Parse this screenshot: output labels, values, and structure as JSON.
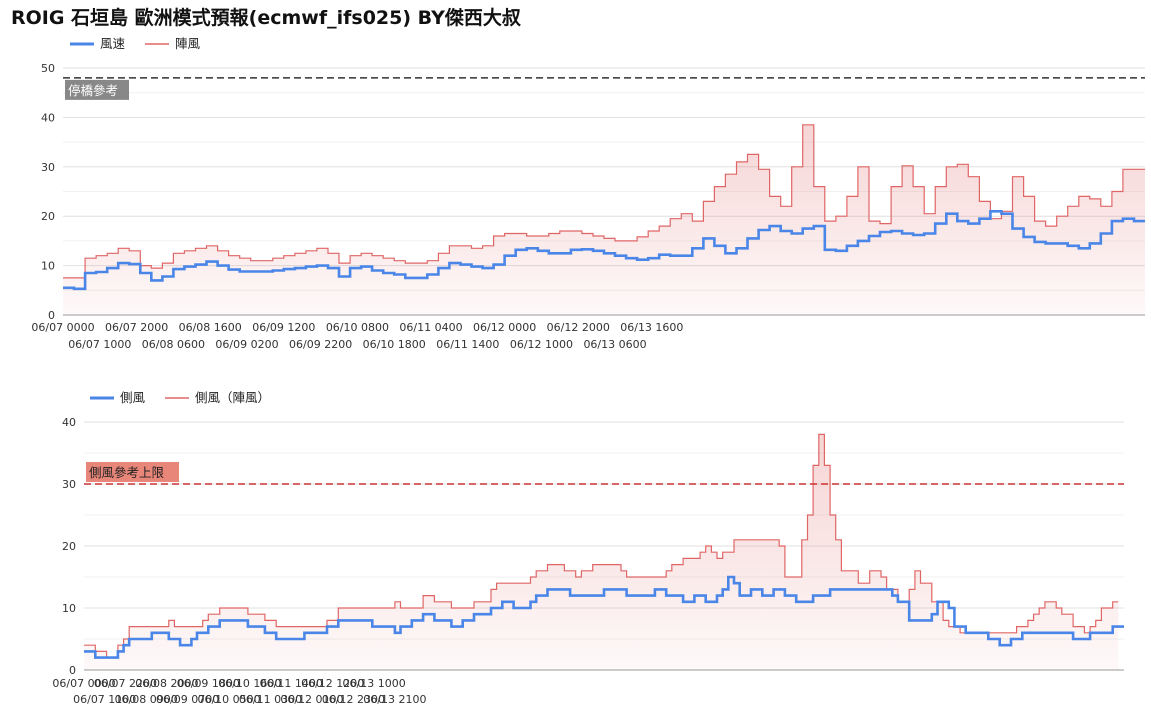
{
  "page": {
    "title": "ROIG 石垣島 歐洲模式預報(ecmwf_ifs025)  BY傑西大叔"
  },
  "colors": {
    "wind": "#4a86e8",
    "gust": "#e06666",
    "gust_fill": "#fce8e8",
    "grid": "#e0e0e0",
    "ref_line_top": "#333333",
    "ref_label_top_bg": "#888888",
    "ref_line_bottom": "#cc3333",
    "ref_label_bottom_bg": "#e8867a"
  },
  "chart_data": [
    {
      "type": "line",
      "step": true,
      "title": "",
      "xlabel": "",
      "ylabel": "",
      "ylim": [
        0,
        50
      ],
      "yticks": [
        0,
        10,
        20,
        30,
        40,
        50
      ],
      "grid": true,
      "legend_position": "top-left",
      "x_start": "06/07 0000",
      "x_step_hours": 3,
      "x_end": "06/13 2100",
      "xtick_labels": [
        {
          "label": "06/07 0000",
          "hour": 0,
          "row": 1
        },
        {
          "label": "06/07 1000",
          "hour": 10,
          "row": 2
        },
        {
          "label": "06/07 2000",
          "hour": 20,
          "row": 1
        },
        {
          "label": "06/08 0600",
          "hour": 30,
          "row": 2
        },
        {
          "label": "06/08 1600",
          "hour": 40,
          "row": 1
        },
        {
          "label": "06/09 0200",
          "hour": 50,
          "row": 2
        },
        {
          "label": "06/09 1200",
          "hour": 60,
          "row": 1
        },
        {
          "label": "06/09 2200",
          "hour": 70,
          "row": 2
        },
        {
          "label": "06/10 0800",
          "hour": 80,
          "row": 1
        },
        {
          "label": "06/10 1800",
          "hour": 90,
          "row": 2
        },
        {
          "label": "06/11 0400",
          "hour": 100,
          "row": 1
        },
        {
          "label": "06/11 1400",
          "hour": 110,
          "row": 2
        },
        {
          "label": "06/12 0000",
          "hour": 120,
          "row": 1
        },
        {
          "label": "06/12 1000",
          "hour": 130,
          "row": 2
        },
        {
          "label": "06/12 2000",
          "hour": 140,
          "row": 1
        },
        {
          "label": "06/13 0600",
          "hour": 150,
          "row": 2
        },
        {
          "label": "06/13 1600",
          "hour": 160,
          "row": 1
        }
      ],
      "reference": {
        "value": 48,
        "label": "停橋參考",
        "style": "dashed"
      },
      "series": [
        {
          "name": "風速",
          "role": "wind",
          "values": [
            5.5,
            5.3,
            8.5,
            8.7,
            9.5,
            10.5,
            10.3,
            8.5,
            7,
            7.8,
            9.3,
            9.8,
            10.2,
            10.8,
            10,
            9.2,
            8.8,
            8.8,
            8.8,
            9,
            9.3,
            9.5,
            9.8,
            10,
            9.5,
            7.8,
            9.5,
            9.8,
            9,
            8.5,
            8.2,
            7.5,
            7.5,
            8.2,
            9.5,
            10.5,
            10.2,
            9.8,
            9.5,
            10.2,
            12,
            13.2,
            13.5,
            13,
            12.5,
            12.5,
            13.2,
            13.3,
            13,
            12.5,
            12,
            11.5,
            11.2,
            11.5,
            12.2,
            12,
            12,
            13.5,
            15.5,
            14,
            12.5,
            13.5,
            15.5,
            17.2,
            18,
            17,
            16.5,
            17.5,
            18,
            13.2,
            13,
            14,
            15,
            16,
            16.8,
            17,
            16.5,
            16.2,
            16.5,
            18.5,
            20.5,
            19,
            18.5,
            19.5,
            21,
            20.5,
            17.5,
            15.8,
            14.8,
            14.5,
            14.5,
            14,
            13.5,
            14.5,
            16.5,
            19,
            19.5,
            19
          ]
        },
        {
          "name": "陣風",
          "role": "gust",
          "values": [
            7.5,
            7.5,
            11.5,
            12,
            12.5,
            13.5,
            13,
            10,
            9.5,
            10.5,
            12.5,
            13,
            13.5,
            14,
            13,
            12,
            11.5,
            11,
            11,
            11.5,
            12,
            12.5,
            13,
            13.5,
            12.5,
            10.5,
            12,
            12.5,
            12,
            11.5,
            11,
            10.5,
            10.5,
            11,
            12.5,
            14,
            14,
            13.5,
            14,
            16,
            16.5,
            16.5,
            16,
            16,
            16.5,
            17,
            17,
            16.5,
            16,
            15.5,
            15,
            15,
            15.8,
            17,
            18,
            19.5,
            20.5,
            19,
            23,
            26,
            28.5,
            31,
            32.5,
            29.5,
            24,
            22,
            30,
            38.5,
            26,
            19,
            20,
            24,
            30,
            19,
            18.5,
            26,
            30.2,
            26,
            20.5,
            26,
            30,
            30.5,
            28,
            23,
            19.5,
            21,
            28,
            24,
            19,
            18,
            20,
            22,
            24,
            23.5,
            22,
            25,
            29.5,
            29.5
          ]
        }
      ]
    },
    {
      "type": "line",
      "step": true,
      "title": "",
      "xlabel": "",
      "ylabel": "",
      "ylim": [
        0,
        40
      ],
      "yticks": [
        0,
        10,
        20,
        30,
        40
      ],
      "grid": true,
      "legend_position": "top-left",
      "x_start": "06/07 0000",
      "x_step_hours": 3,
      "x_end": "06/13 2100",
      "xtick_labels": [
        {
          "label": "06/07 0000",
          "hour": 0,
          "row": 1
        },
        {
          "label": "06/07 1100",
          "hour": 11,
          "row": 2
        },
        {
          "label": "06/07 2200",
          "hour": 22,
          "row": 1
        },
        {
          "label": "06/08 0900",
          "hour": 33,
          "row": 2
        },
        {
          "label": "06/08 2000",
          "hour": 44,
          "row": 1
        },
        {
          "label": "06/09 0700",
          "hour": 55,
          "row": 2
        },
        {
          "label": "06/09 1800",
          "hour": 66,
          "row": 1
        },
        {
          "label": "06/10 0500",
          "hour": 77,
          "row": 2
        },
        {
          "label": "06/10 1600",
          "hour": 88,
          "row": 1
        },
        {
          "label": "06/11 0300",
          "hour": 99,
          "row": 2
        },
        {
          "label": "06/11 1400",
          "hour": 110,
          "row": 1
        },
        {
          "label": "06/12 0100",
          "hour": 121,
          "row": 2
        },
        {
          "label": "06/12 1200",
          "hour": 132,
          "row": 1
        },
        {
          "label": "06/12 2300",
          "hour": 143,
          "row": 2
        },
        {
          "label": "06/13 1000",
          "hour": 154,
          "row": 1
        },
        {
          "label": "06/13 2100",
          "hour": 165,
          "row": 2
        }
      ],
      "reference": {
        "value": 30,
        "label": "側風參考上限",
        "style": "dashed"
      },
      "series": [
        {
          "name": "側風",
          "role": "wind",
          "values": [
            3,
            3,
            2,
            2,
            2,
            2,
            3,
            4,
            5,
            5,
            5,
            5,
            6,
            6,
            6,
            5,
            5,
            4,
            4,
            5,
            6,
            6,
            7,
            7,
            8,
            8,
            8,
            8,
            8,
            7,
            7,
            7,
            6,
            6,
            5,
            5,
            5,
            5,
            5,
            6,
            6,
            6,
            6,
            7,
            7,
            8,
            8,
            8,
            8,
            8,
            8,
            7,
            7,
            7,
            7,
            6,
            7,
            7,
            8,
            8,
            9,
            9,
            8,
            8,
            8,
            7,
            7,
            8,
            8,
            9,
            9,
            9,
            10,
            10,
            11,
            11,
            10,
            10,
            10,
            11,
            12,
            12,
            13,
            13,
            13,
            13,
            12,
            12,
            12,
            12,
            12,
            12,
            13,
            13,
            13,
            13,
            12,
            12,
            12,
            12,
            12,
            13,
            13,
            12,
            12,
            12,
            11,
            11,
            12,
            12,
            11,
            11,
            12,
            13,
            15,
            14,
            12,
            12,
            13,
            13,
            12,
            12,
            13,
            13,
            12,
            12,
            11,
            11,
            11,
            12,
            12,
            12,
            13,
            13,
            13,
            13,
            13,
            13,
            13,
            13,
            13,
            13,
            13,
            12,
            11,
            11,
            8,
            8,
            8,
            8,
            9,
            11,
            11,
            10,
            7,
            7,
            6,
            6,
            6,
            6,
            5,
            5,
            4,
            4,
            5,
            5,
            6,
            6,
            6,
            6,
            6,
            6,
            6,
            6,
            6,
            5,
            5,
            5,
            6,
            6,
            6,
            6,
            7,
            7
          ]
        },
        {
          "name": "側風（陣風）",
          "role": "gust",
          "values": [
            4,
            4,
            3,
            3,
            2,
            2,
            4,
            5,
            7,
            7,
            7,
            7,
            7,
            7,
            7,
            8,
            7,
            7,
            7,
            7,
            7,
            8,
            9,
            9,
            10,
            10,
            10,
            10,
            10,
            9,
            9,
            9,
            8,
            8,
            7,
            7,
            7,
            7,
            7,
            7,
            7,
            7,
            7,
            8,
            8,
            10,
            10,
            10,
            10,
            10,
            10,
            10,
            10,
            10,
            10,
            11,
            10,
            10,
            10,
            10,
            12,
            12,
            11,
            11,
            11,
            10,
            10,
            10,
            10,
            11,
            11,
            11,
            13,
            14,
            14,
            14,
            14,
            14,
            14,
            15,
            16,
            16,
            17,
            17,
            17,
            16,
            16,
            15,
            16,
            16,
            17,
            17,
            17,
            17,
            17,
            16,
            15,
            15,
            15,
            15,
            15,
            15,
            15,
            16,
            17,
            17,
            18,
            18,
            18,
            19,
            20,
            19,
            18,
            19,
            19,
            21,
            21,
            21,
            21,
            21,
            21,
            21,
            21,
            20,
            15,
            15,
            15,
            21,
            25,
            33,
            38,
            33,
            25,
            21,
            16,
            16,
            16,
            14,
            14,
            16,
            16,
            15,
            13,
            13,
            11,
            11,
            13,
            16,
            14,
            14,
            11,
            11,
            8,
            7,
            7,
            6,
            6,
            6,
            6,
            6,
            6,
            6,
            6,
            6,
            6,
            7,
            7,
            8,
            9,
            10,
            11,
            11,
            10,
            9,
            9,
            7,
            7,
            6,
            7,
            8,
            10,
            10,
            11
          ]
        }
      ]
    }
  ]
}
